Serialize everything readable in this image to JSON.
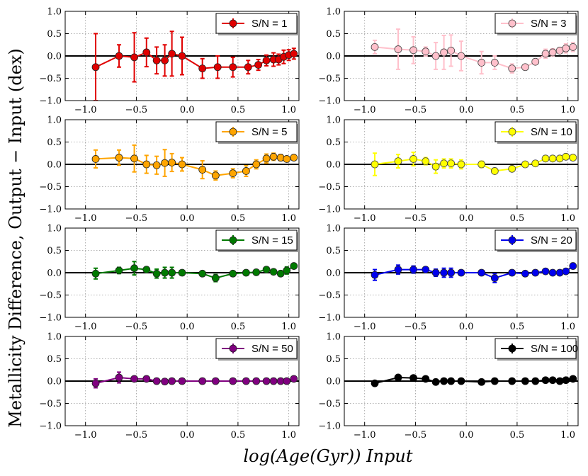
{
  "figure": {
    "ylabel": "Metallicity Difference, Output − Input (dex)",
    "xlabel": "log(Age(Gyr)) Input"
  },
  "chart_data": [
    {
      "type": "line",
      "legend": "S/N = 1",
      "color": "#e00000",
      "x": [
        -0.9,
        -0.67,
        -0.52,
        -0.4,
        -0.3,
        -0.22,
        -0.15,
        -0.05,
        0.15,
        0.3,
        0.45,
        0.6,
        0.7,
        0.78,
        0.85,
        0.9,
        0.95,
        1.0,
        1.05
      ],
      "y": [
        -0.25,
        0.0,
        -0.03,
        0.08,
        -0.1,
        -0.1,
        0.05,
        0.0,
        -0.28,
        -0.25,
        -0.25,
        -0.25,
        -0.2,
        -0.1,
        -0.08,
        -0.08,
        -0.02,
        0.02,
        0.05
      ],
      "err": [
        0.75,
        0.25,
        0.55,
        0.32,
        0.3,
        0.35,
        0.5,
        0.42,
        0.22,
        0.25,
        0.22,
        0.15,
        0.12,
        0.12,
        0.15,
        0.12,
        0.15,
        0.12,
        0.12
      ],
      "xlim": [
        -1.2,
        1.1
      ],
      "ylim": [
        -1.0,
        1.0
      ],
      "xticks": [
        -1.0,
        -0.5,
        0.0,
        0.5,
        1.0
      ],
      "yticks": [
        -1.0,
        -0.5,
        0.0,
        0.5,
        1.0
      ],
      "grid": true,
      "legend_position": "top-right"
    },
    {
      "type": "line",
      "legend": "S/N = 3",
      "color": "#ffc0cb",
      "x": [
        -0.9,
        -0.67,
        -0.52,
        -0.4,
        -0.3,
        -0.22,
        -0.15,
        -0.05,
        0.15,
        0.28,
        0.45,
        0.58,
        0.68,
        0.78,
        0.85,
        0.92,
        0.98,
        1.05
      ],
      "y": [
        0.2,
        0.15,
        0.13,
        0.1,
        0.0,
        0.08,
        0.12,
        0.0,
        -0.15,
        -0.15,
        -0.28,
        -0.25,
        -0.13,
        0.05,
        0.08,
        0.12,
        0.17,
        0.2
      ],
      "err": [
        0.15,
        0.45,
        0.3,
        0.1,
        0.3,
        0.38,
        0.35,
        0.33,
        0.25,
        0.15,
        0.1,
        0.05,
        0.05,
        0.1,
        0.08,
        0.06,
        0.1,
        0.1
      ],
      "xlim": [
        -1.2,
        1.1
      ],
      "ylim": [
        -1.0,
        1.0
      ],
      "xticks": [
        -1.0,
        -0.5,
        0.0,
        0.5,
        1.0
      ],
      "yticks": [
        -1.0,
        -0.5,
        0.0,
        0.5,
        1.0
      ],
      "grid": true,
      "legend_position": "top-right"
    },
    {
      "type": "line",
      "legend": "S/N = 5",
      "color": "#ffa500",
      "x": [
        -0.9,
        -0.67,
        -0.52,
        -0.4,
        -0.3,
        -0.22,
        -0.15,
        -0.05,
        0.15,
        0.28,
        0.45,
        0.58,
        0.68,
        0.78,
        0.85,
        0.92,
        0.98,
        1.05
      ],
      "y": [
        0.12,
        0.15,
        0.13,
        0.0,
        -0.02,
        0.03,
        0.04,
        0.0,
        -0.12,
        -0.25,
        -0.2,
        -0.15,
        0.0,
        0.13,
        0.17,
        0.15,
        0.12,
        0.15
      ],
      "err": [
        0.2,
        0.17,
        0.3,
        0.2,
        0.2,
        0.3,
        0.2,
        0.15,
        0.2,
        0.1,
        0.1,
        0.12,
        0.1,
        0.1,
        0.08,
        0.07,
        0.05,
        0.05
      ],
      "xlim": [
        -1.2,
        1.1
      ],
      "ylim": [
        -1.0,
        1.0
      ],
      "xticks": [
        -1.0,
        -0.5,
        0.0,
        0.5,
        1.0
      ],
      "yticks": [
        -1.0,
        -0.5,
        0.0,
        0.5,
        1.0
      ],
      "grid": true,
      "legend_position": "top-right"
    },
    {
      "type": "line",
      "legend": "S/N = 10",
      "color": "#ffff00",
      "x": [
        -0.9,
        -0.67,
        -0.52,
        -0.4,
        -0.3,
        -0.22,
        -0.15,
        -0.05,
        0.15,
        0.28,
        0.45,
        0.58,
        0.68,
        0.78,
        0.85,
        0.92,
        0.98,
        1.05
      ],
      "y": [
        0.0,
        0.07,
        0.12,
        0.07,
        -0.05,
        0.02,
        0.02,
        0.0,
        0.0,
        -0.15,
        -0.1,
        0.0,
        0.02,
        0.13,
        0.13,
        0.13,
        0.17,
        0.15
      ],
      "err": [
        0.25,
        0.15,
        0.15,
        0.08,
        0.15,
        0.1,
        0.1,
        0.1,
        0.07,
        0.06,
        0.06,
        0.05,
        0.04,
        0.04,
        0.05,
        0.05,
        0.05,
        0.05
      ],
      "xlim": [
        -1.2,
        1.1
      ],
      "ylim": [
        -1.0,
        1.0
      ],
      "xticks": [
        -1.0,
        -0.5,
        0.0,
        0.5,
        1.0
      ],
      "yticks": [
        -1.0,
        -0.5,
        0.0,
        0.5,
        1.0
      ],
      "grid": true,
      "legend_position": "top-right"
    },
    {
      "type": "line",
      "legend": "S/N = 15",
      "color": "#007a00",
      "x": [
        -0.9,
        -0.67,
        -0.52,
        -0.4,
        -0.3,
        -0.22,
        -0.15,
        -0.05,
        0.15,
        0.28,
        0.45,
        0.58,
        0.68,
        0.78,
        0.85,
        0.92,
        0.98,
        1.05
      ],
      "y": [
        -0.02,
        0.05,
        0.1,
        0.07,
        -0.02,
        0.0,
        0.0,
        0.0,
        -0.02,
        -0.12,
        -0.02,
        0.0,
        0.01,
        0.07,
        0.02,
        -0.02,
        0.05,
        0.15
      ],
      "err": [
        0.12,
        0.07,
        0.15,
        0.05,
        0.1,
        0.12,
        0.12,
        0.05,
        0.04,
        0.08,
        0.04,
        0.03,
        0.03,
        0.04,
        0.03,
        0.03,
        0.08,
        0.05
      ],
      "xlim": [
        -1.2,
        1.1
      ],
      "ylim": [
        -1.0,
        1.0
      ],
      "xticks": [
        -1.0,
        -0.5,
        0.0,
        0.5,
        1.0
      ],
      "yticks": [
        -1.0,
        -0.5,
        0.0,
        0.5,
        1.0
      ],
      "grid": true,
      "legend_position": "top-right"
    },
    {
      "type": "line",
      "legend": "S/N = 20",
      "color": "#0000ee",
      "x": [
        -0.9,
        -0.67,
        -0.52,
        -0.4,
        -0.3,
        -0.22,
        -0.15,
        -0.05,
        0.15,
        0.28,
        0.45,
        0.58,
        0.68,
        0.78,
        0.85,
        0.92,
        0.98,
        1.05
      ],
      "y": [
        -0.05,
        0.07,
        0.07,
        0.07,
        0.0,
        0.0,
        0.0,
        0.0,
        0.0,
        -0.12,
        0.0,
        -0.02,
        0.0,
        0.03,
        0.0,
        0.0,
        0.03,
        0.15
      ],
      "err": [
        0.12,
        0.1,
        0.08,
        0.05,
        0.08,
        0.1,
        0.1,
        0.05,
        0.05,
        0.1,
        0.04,
        0.03,
        0.03,
        0.04,
        0.03,
        0.03,
        0.05,
        0.06
      ],
      "xlim": [
        -1.2,
        1.1
      ],
      "ylim": [
        -1.0,
        1.0
      ],
      "xticks": [
        -1.0,
        -0.5,
        0.0,
        0.5,
        1.0
      ],
      "yticks": [
        -1.0,
        -0.5,
        0.0,
        0.5,
        1.0
      ],
      "grid": true,
      "legend_position": "top-right"
    },
    {
      "type": "line",
      "legend": "S/N = 50",
      "color": "#800080",
      "x": [
        -0.9,
        -0.67,
        -0.52,
        -0.4,
        -0.3,
        -0.22,
        -0.15,
        -0.05,
        0.15,
        0.28,
        0.45,
        0.58,
        0.68,
        0.78,
        0.85,
        0.92,
        0.98,
        1.05
      ],
      "y": [
        -0.05,
        0.08,
        0.05,
        0.05,
        0.0,
        -0.01,
        0.0,
        0.0,
        0.0,
        0.0,
        0.0,
        0.0,
        0.0,
        0.0,
        0.0,
        0.0,
        0.0,
        0.05
      ],
      "err": [
        0.1,
        0.12,
        0.04,
        0.03,
        0.03,
        0.03,
        0.03,
        0.02,
        0.02,
        0.02,
        0.02,
        0.02,
        0.02,
        0.02,
        0.02,
        0.02,
        0.02,
        0.02
      ],
      "xlim": [
        -1.2,
        1.1
      ],
      "ylim": [
        -1.0,
        1.0
      ],
      "xticks": [
        -1.0,
        -0.5,
        0.0,
        0.5,
        1.0
      ],
      "yticks": [
        -1.0,
        -0.5,
        0.0,
        0.5,
        1.0
      ],
      "grid": true,
      "legend_position": "top-right"
    },
    {
      "type": "line",
      "legend": "S/N = 100",
      "color": "#000000",
      "x": [
        -0.9,
        -0.67,
        -0.52,
        -0.4,
        -0.3,
        -0.22,
        -0.15,
        -0.05,
        0.15,
        0.28,
        0.45,
        0.58,
        0.68,
        0.78,
        0.85,
        0.92,
        0.98,
        1.05
      ],
      "y": [
        -0.05,
        0.08,
        0.07,
        0.05,
        -0.02,
        0.0,
        0.0,
        0.0,
        -0.02,
        0.0,
        0.0,
        0.0,
        0.0,
        0.02,
        0.02,
        0.0,
        0.02,
        0.05
      ],
      "err": [
        0.03,
        0.03,
        0.03,
        0.02,
        0.02,
        0.02,
        0.02,
        0.02,
        0.02,
        0.02,
        0.02,
        0.02,
        0.02,
        0.02,
        0.02,
        0.02,
        0.02,
        0.02
      ],
      "xlim": [
        -1.2,
        1.1
      ],
      "ylim": [
        -1.0,
        1.0
      ],
      "xticks": [
        -1.0,
        -0.5,
        0.0,
        0.5,
        1.0
      ],
      "yticks": [
        -1.0,
        -0.5,
        0.0,
        0.5,
        1.0
      ],
      "grid": true,
      "legend_position": "top-right"
    }
  ]
}
